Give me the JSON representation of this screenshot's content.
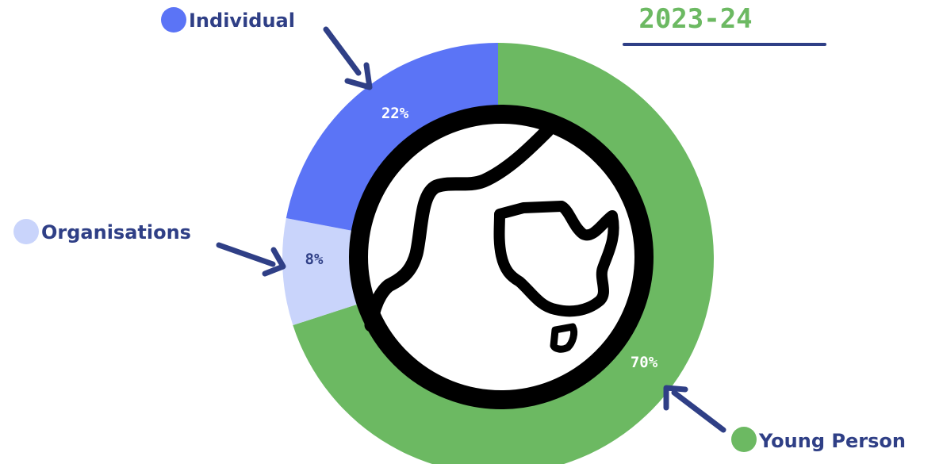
{
  "chart_data": {
    "type": "pie",
    "variant": "donut",
    "title": "2023-24",
    "slices": [
      {
        "name": "Young Person",
        "value": 70,
        "label": "70%",
        "color": "#6cb962"
      },
      {
        "name": "Organisations",
        "value": 8,
        "label": "8%",
        "color": "#c9d4fb"
      },
      {
        "name": "Individual",
        "value": 22,
        "label": "22%",
        "color": "#5b74f6"
      }
    ],
    "start": "12 o'clock",
    "direction": "clockwise",
    "legend_placement": "callouts with arrows around the ring",
    "center_graphic": "globe-icon"
  },
  "colors": {
    "title": "#6cb962",
    "accent_line": "#2f3f86",
    "legend_text": "#2f3f86",
    "arrow": "#2f3f86",
    "pct_text_light": "#ffffff",
    "pct_text_dark": "#2f3f86"
  }
}
